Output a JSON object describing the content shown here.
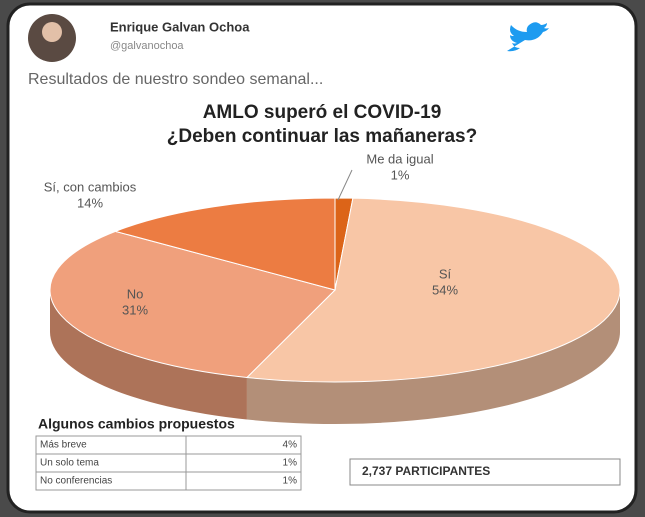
{
  "tweet": {
    "author": "Enrique Galvan Ochoa",
    "handle": "@galvanochoa",
    "text": "Resultados de nuestro sondeo semanal..."
  },
  "chart_data": {
    "type": "pie",
    "title": "AMLO superó el COVID-19",
    "subtitle": "¿Deben continuar las mañaneras?",
    "categories": [
      "Me da igual",
      "Sí",
      "No",
      "Sí, con cambios"
    ],
    "values": [
      1,
      54,
      31,
      14
    ],
    "value_labels": [
      "1%",
      "54%",
      "31%",
      "14%"
    ],
    "colors": [
      "#dc6418",
      "#f8c6a6",
      "#f0a07c",
      "#ec7c42"
    ]
  },
  "changes": {
    "title": "Algunos cambios propuestos",
    "rows": [
      [
        "Más breve",
        "4%"
      ],
      [
        "Un solo tema",
        "1%"
      ],
      [
        "No conferencias",
        "1%"
      ]
    ]
  },
  "participants": "2,737 PARTICIPANTES"
}
